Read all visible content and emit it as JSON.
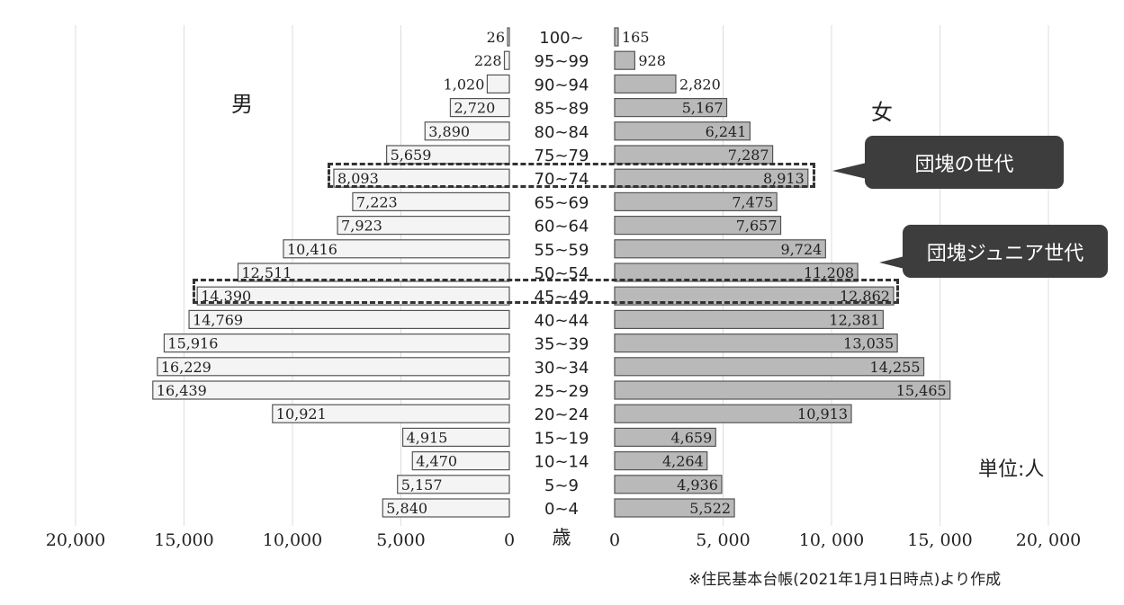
{
  "chart_data": {
    "type": "bar",
    "orientation": "population-pyramid",
    "categories": [
      "100~",
      "95~99",
      "90~94",
      "85~89",
      "80~84",
      "75~79",
      "70~74",
      "65~69",
      "60~64",
      "55~59",
      "50~54",
      "45~49",
      "40~44",
      "35~39",
      "30~34",
      "25~29",
      "20~24",
      "15~19",
      "10~14",
      "5~9",
      "0~4"
    ],
    "series": [
      {
        "name": "男",
        "values": [
          26,
          228,
          1020,
          2720,
          3890,
          5659,
          8093,
          7223,
          7923,
          10416,
          12511,
          14390,
          14769,
          15916,
          16229,
          16439,
          10921,
          4915,
          4470,
          5157,
          5840
        ],
        "labels": [
          "26",
          "228",
          "1,020",
          "2,720",
          "3,890",
          "5,659",
          "8,093",
          "7,223",
          "7,923",
          "10,416",
          "12,511",
          "14,390",
          "14,769",
          "15,916",
          "16,229",
          "16,439",
          "10,921",
          "4,915",
          "4,470",
          "5,157",
          "5,840"
        ]
      },
      {
        "name": "女",
        "values": [
          165,
          928,
          2820,
          5167,
          6241,
          7287,
          8913,
          7475,
          7657,
          9724,
          11208,
          12862,
          12381,
          13035,
          14255,
          15465,
          10913,
          4659,
          4264,
          4936,
          5522
        ],
        "labels": [
          "165",
          "928",
          "2,820",
          "5,167",
          "6,241",
          "7,287",
          "8,913",
          "7,475",
          "7,657",
          "9,724",
          "11,208",
          "12,862",
          "12,381",
          "13,035",
          "14,255",
          "15,465",
          "10,913",
          "4,659",
          "4,264",
          "4,936",
          "5,522"
        ]
      }
    ],
    "xlim": [
      0,
      20000
    ],
    "xticks_left": [
      "20,000",
      "15,000",
      "10,000",
      "5,000",
      "0"
    ],
    "xticks_right": [
      "0",
      "5, 000",
      "10, 000",
      "15, 000",
      "20, 000"
    ],
    "age_axis_label": "歳",
    "unit": "単位:人",
    "colors": {
      "male_fill": "#f4f4f4",
      "female_fill": "#b9b9b9",
      "bar_border": "#555555",
      "callout": "#3d3d3d"
    },
    "annotations": [
      {
        "text": "団塊の世代",
        "category": "70~74"
      },
      {
        "text": "団塊ジュニア世代",
        "category": "45~49"
      }
    ]
  },
  "labels": {
    "male": "男",
    "female": "女",
    "unit": "単位:人",
    "source": "※住民基本台帳(2021年1月1日時点)より作成",
    "callout_baby_boomers": "団塊の世代",
    "callout_junior": "団塊ジュニア世代"
  }
}
